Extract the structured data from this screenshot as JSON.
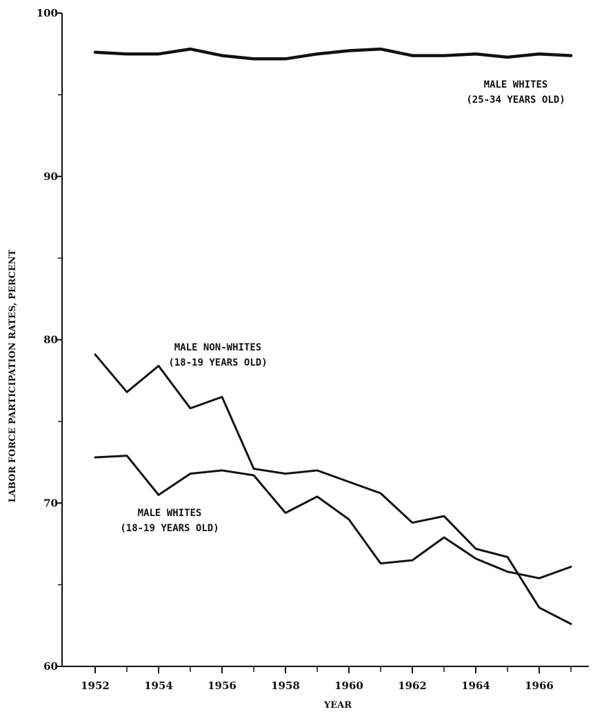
{
  "chart_data": {
    "type": "line",
    "title": "",
    "xlabel": "YEAR",
    "ylabel": "LABOR FORCE PARTICIPATION RATES, PERCENT",
    "xlim": [
      1951.2,
      1967
    ],
    "ylim": [
      60,
      100
    ],
    "x_ticks": [
      1952,
      1954,
      1956,
      1958,
      1960,
      1962,
      1964,
      1966
    ],
    "x_minor_ticks": [
      1953,
      1955,
      1957,
      1959,
      1961,
      1963,
      1965,
      1967
    ],
    "y_ticks": [
      60,
      70,
      80,
      90,
      100
    ],
    "y_minor_ticks": [
      65,
      75,
      85,
      95
    ],
    "grid": false,
    "x": [
      1952,
      1953,
      1954,
      1955,
      1956,
      1957,
      1958,
      1959,
      1960,
      1961,
      1962,
      1963,
      1964,
      1965,
      1966,
      1967
    ],
    "series": [
      {
        "id": "male-whites-25-34",
        "label_lines": [
          "MALE WHITES",
          "(25-34 YEARS OLD)"
        ],
        "values": [
          97.6,
          97.5,
          97.5,
          97.8,
          97.4,
          97.2,
          97.2,
          97.5,
          97.7,
          97.8,
          97.4,
          97.4,
          97.5,
          97.3,
          97.5,
          97.4
        ],
        "color": "#111111",
        "stroke": "thick"
      },
      {
        "id": "male-non-whites-18-19",
        "label_lines": [
          "MALE NON-WHITES",
          "(18-19 YEARS OLD)"
        ],
        "values": [
          79.1,
          76.8,
          78.4,
          75.8,
          76.5,
          72.1,
          71.8,
          72.0,
          71.3,
          70.6,
          68.8,
          69.2,
          67.2,
          66.7,
          63.6,
          62.6
        ],
        "color": "#111111",
        "stroke": "medium"
      },
      {
        "id": "male-whites-18-19",
        "label_lines": [
          "MALE WHITES",
          "(18-19 YEARS OLD)"
        ],
        "values": [
          72.8,
          72.9,
          70.5,
          71.8,
          72.0,
          71.7,
          69.4,
          70.4,
          69.0,
          66.3,
          66.5,
          67.9,
          66.6,
          65.8,
          65.4,
          66.1
        ],
        "color": "#111111",
        "stroke": "medium"
      }
    ]
  }
}
